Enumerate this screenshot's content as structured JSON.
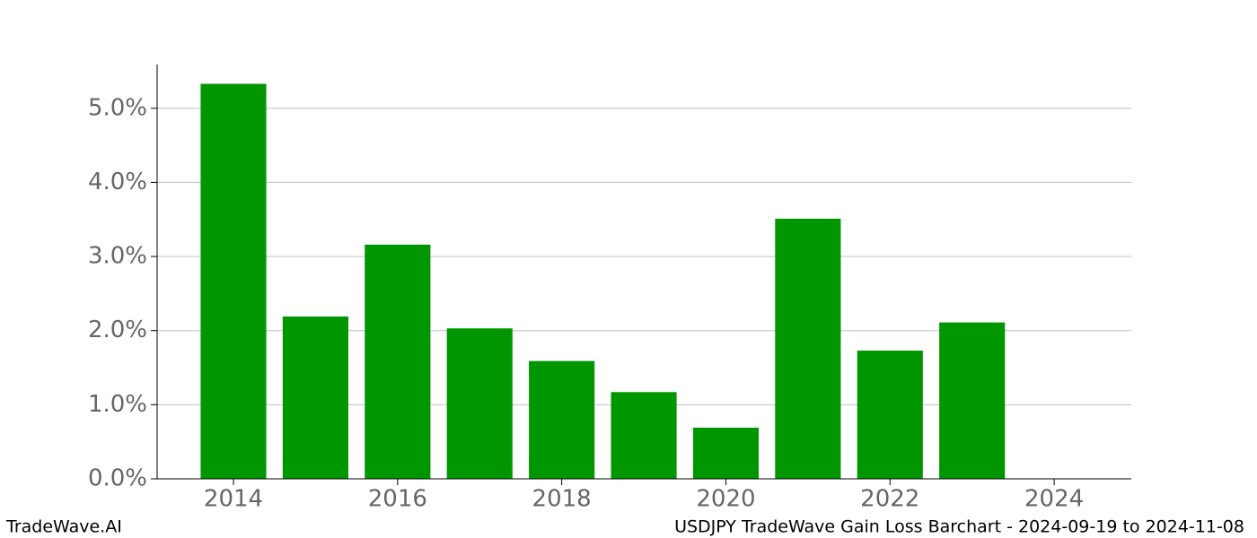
{
  "chart_data": {
    "type": "bar",
    "title": "USDJPY TradeWave Gain Loss Barchart - 2024-09-19 to 2024-11-08",
    "source": "TradeWave.AI",
    "x": [
      2014,
      2015,
      2016,
      2017,
      2018,
      2019,
      2020,
      2021,
      2022,
      2023
    ],
    "values": [
      5.33,
      2.19,
      3.16,
      2.03,
      1.59,
      1.17,
      0.69,
      3.51,
      1.73,
      2.11
    ],
    "color": "#009600",
    "xlim": [
      2013.07,
      2024.94
    ],
    "xticks": [
      2014,
      2016,
      2018,
      2020,
      2022,
      2024
    ],
    "ylim": [
      0,
      5.59
    ],
    "yticks": [
      {
        "value": 0,
        "label": "0.0%"
      },
      {
        "value": 1,
        "label": "1.0%"
      },
      {
        "value": 2,
        "label": "2.0%"
      },
      {
        "value": 3,
        "label": "3.0%"
      },
      {
        "value": 4,
        "label": "4.0%"
      },
      {
        "value": 5,
        "label": "5.0%"
      }
    ],
    "grid": true
  }
}
